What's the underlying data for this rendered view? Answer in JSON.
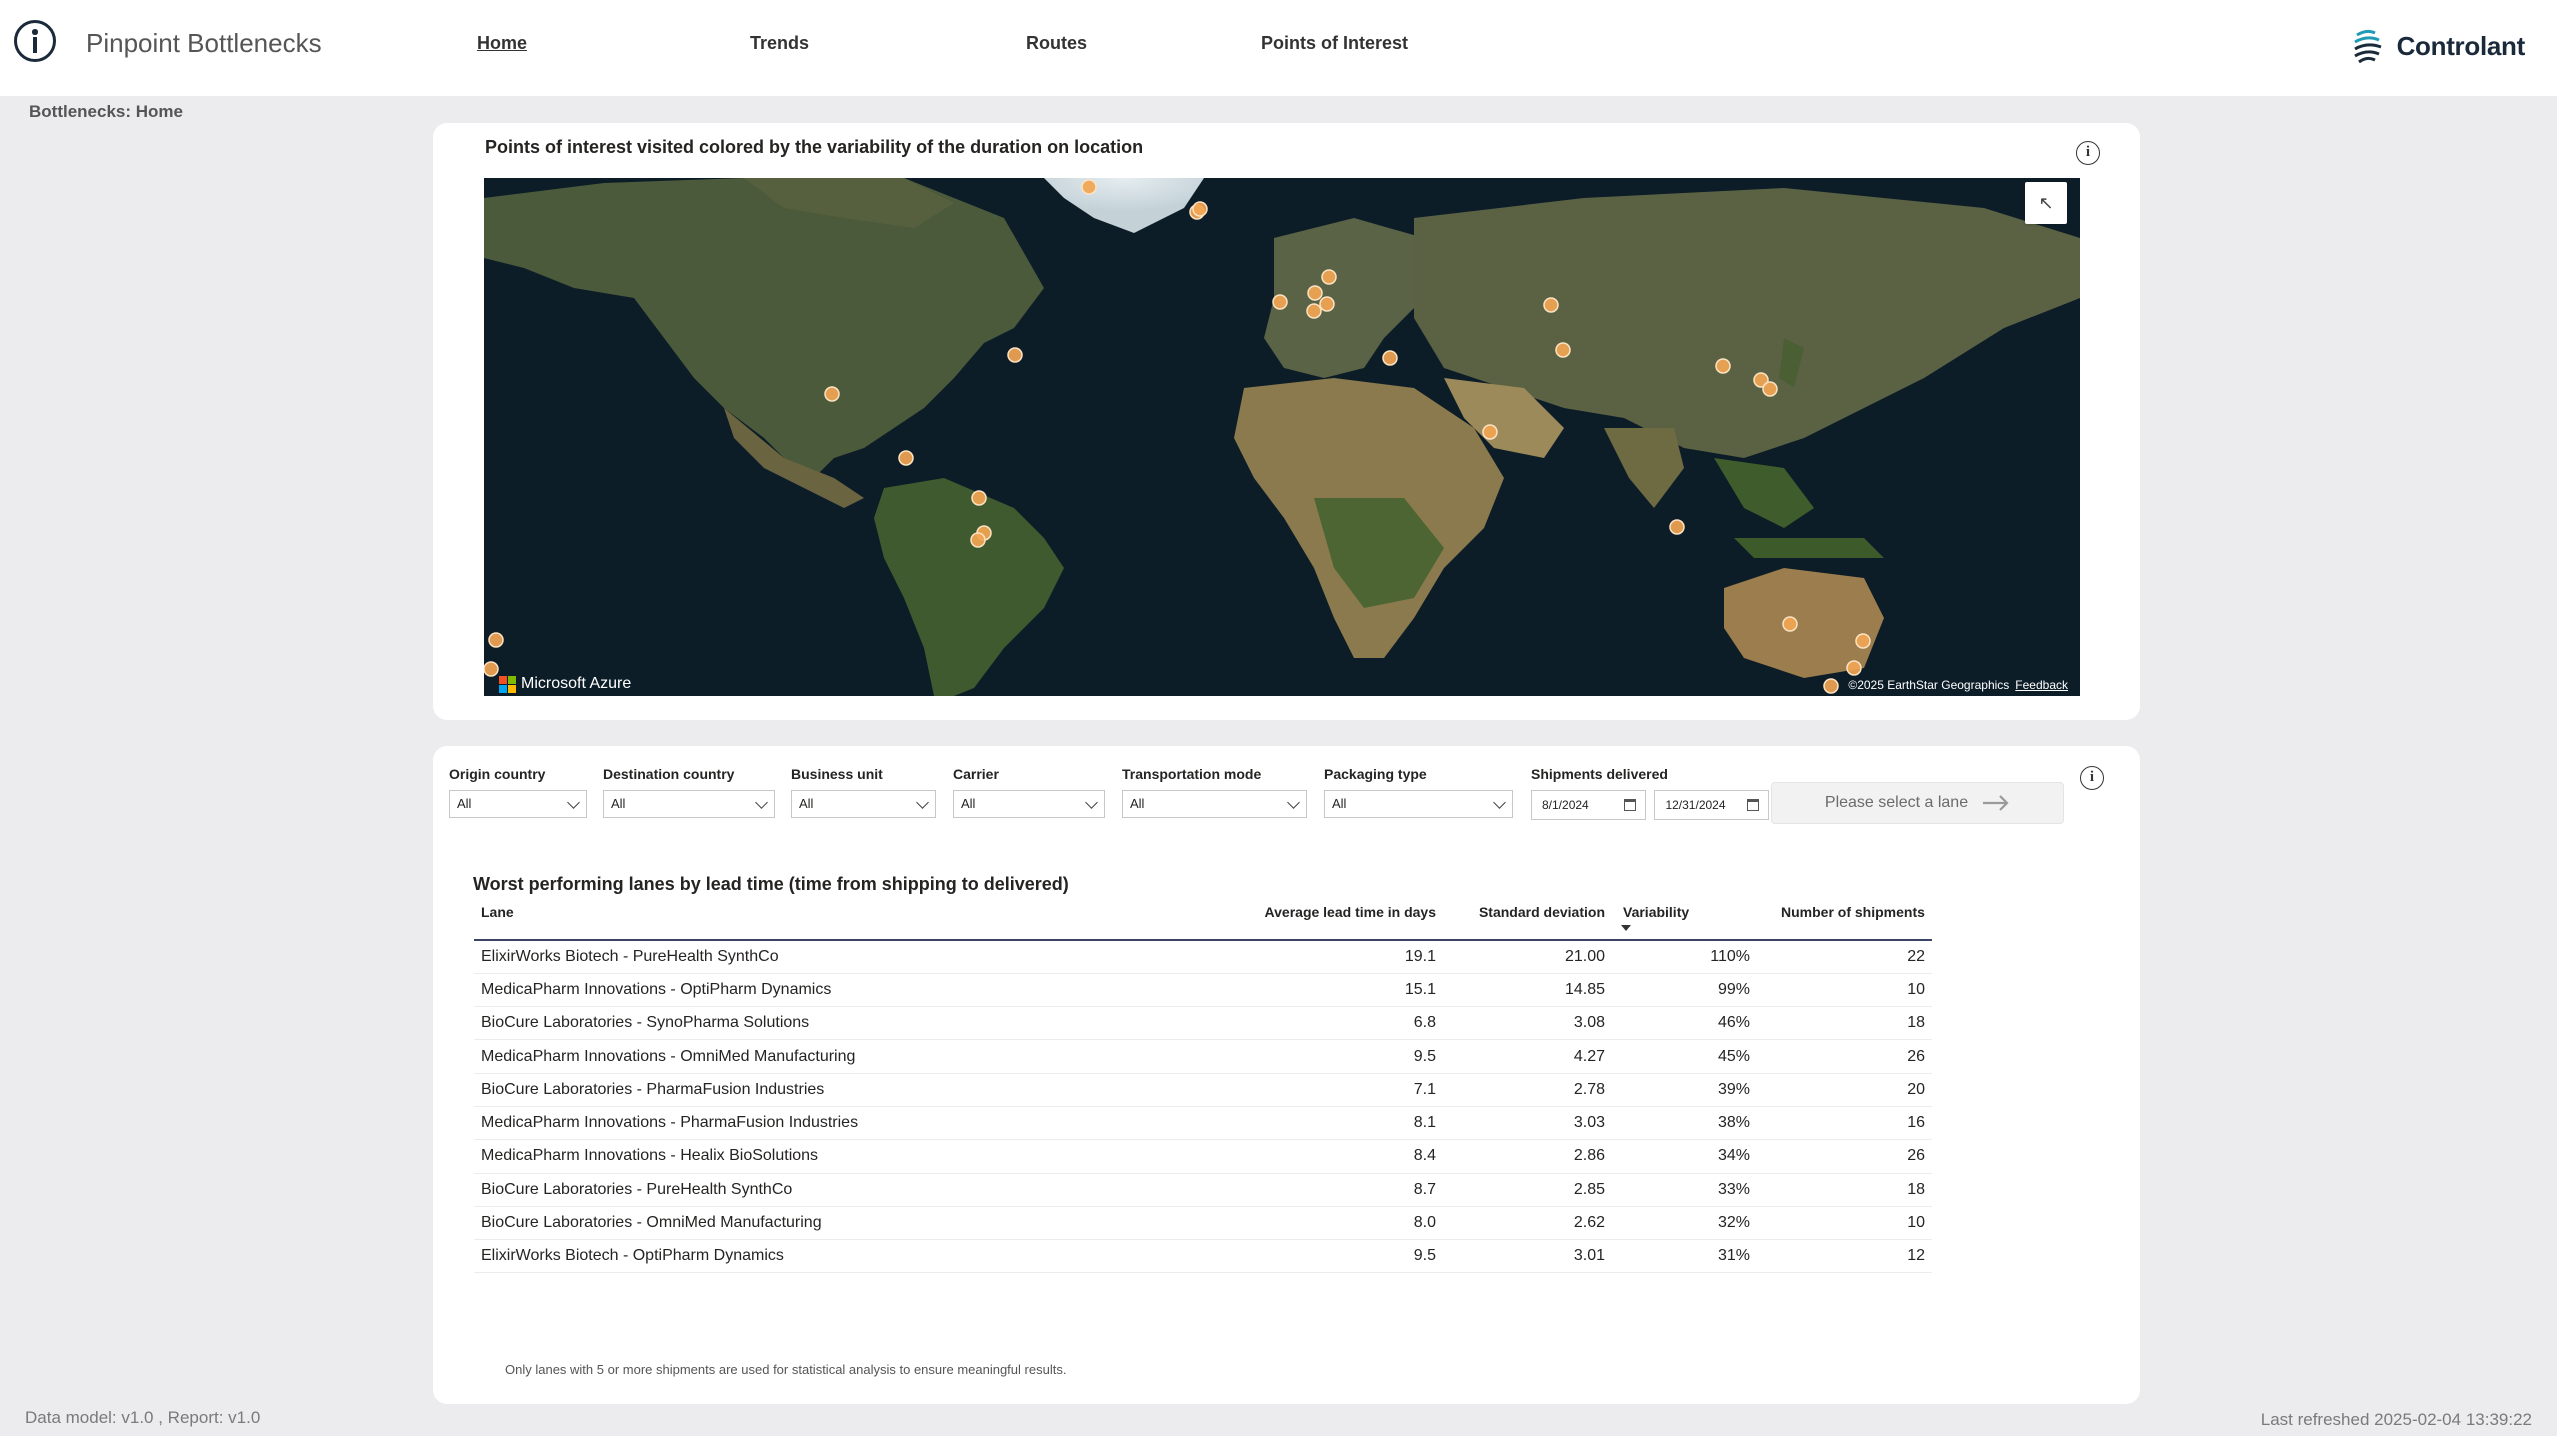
{
  "app": {
    "title": "Pinpoint Bottlenecks",
    "brand": "Controlant"
  },
  "nav": {
    "items": [
      {
        "label": "Home",
        "active": true
      },
      {
        "label": "Trends",
        "active": false
      },
      {
        "label": "Routes",
        "active": false
      },
      {
        "label": "Points of Interest",
        "active": false
      }
    ]
  },
  "breadcrumb": "Bottlenecks: Home",
  "map": {
    "title": "Points of interest visited colored by the variability of the duration on location",
    "provider": "Microsoft Azure",
    "attribution": "©2025 EarthStar Geographics",
    "feedback": "Feedback",
    "marker_color": "#f2a552"
  },
  "filters": {
    "origin_country": {
      "label": "Origin country",
      "value": "All"
    },
    "destination_country": {
      "label": "Destination country",
      "value": "All"
    },
    "business_unit": {
      "label": "Business unit",
      "value": "All"
    },
    "carrier": {
      "label": "Carrier",
      "value": "All"
    },
    "transportation_mode": {
      "label": "Transportation mode",
      "value": "All"
    },
    "packaging_type": {
      "label": "Packaging type",
      "value": "All"
    },
    "shipments_delivered": {
      "label": "Shipments delivered",
      "start": "8/1/2024",
      "end": "12/31/2024"
    }
  },
  "lane_button": "Please select a lane",
  "table": {
    "title": "Worst performing lanes by lead time (time from shipping to delivered)",
    "columns": [
      "Lane",
      "Average lead time in days",
      "Standard deviation",
      "Variability",
      "Number of shipments"
    ],
    "sorted_by": "Variability",
    "rows": [
      {
        "lane": "ElixirWorks Biotech - PureHealth SynthCo",
        "avg": "19.1",
        "std": "21.00",
        "var": "110%",
        "count": "22"
      },
      {
        "lane": "MedicaPharm Innovations - OptiPharm Dynamics",
        "avg": "15.1",
        "std": "14.85",
        "var": "99%",
        "count": "10"
      },
      {
        "lane": "BioCure Laboratories - SynoPharma Solutions",
        "avg": "6.8",
        "std": "3.08",
        "var": "46%",
        "count": "18"
      },
      {
        "lane": "MedicaPharm Innovations - OmniMed Manufacturing",
        "avg": "9.5",
        "std": "4.27",
        "var": "45%",
        "count": "26"
      },
      {
        "lane": "BioCure Laboratories - PharmaFusion Industries",
        "avg": "7.1",
        "std": "2.78",
        "var": "39%",
        "count": "20"
      },
      {
        "lane": "MedicaPharm Innovations - PharmaFusion Industries",
        "avg": "8.1",
        "std": "3.03",
        "var": "38%",
        "count": "16"
      },
      {
        "lane": "MedicaPharm Innovations - Healix BioSolutions",
        "avg": "8.4",
        "std": "2.86",
        "var": "34%",
        "count": "26"
      },
      {
        "lane": "BioCure Laboratories - PureHealth SynthCo",
        "avg": "8.7",
        "std": "2.85",
        "var": "33%",
        "count": "18"
      },
      {
        "lane": "BioCure Laboratories - OmniMed Manufacturing",
        "avg": "8.0",
        "std": "2.62",
        "var": "32%",
        "count": "10"
      },
      {
        "lane": "ElixirWorks Biotech - OptiPharm Dynamics",
        "avg": "9.5",
        "std": "3.01",
        "var": "31%",
        "count": "12"
      }
    ],
    "footnote": "Only lanes with 5 or more shipments are used for statistical analysis to ensure meaningful results."
  },
  "footer": {
    "version": "Data model: v1.0 , Report: v1.0",
    "refreshed": "Last refreshed 2025-02-04 13:39:22"
  }
}
